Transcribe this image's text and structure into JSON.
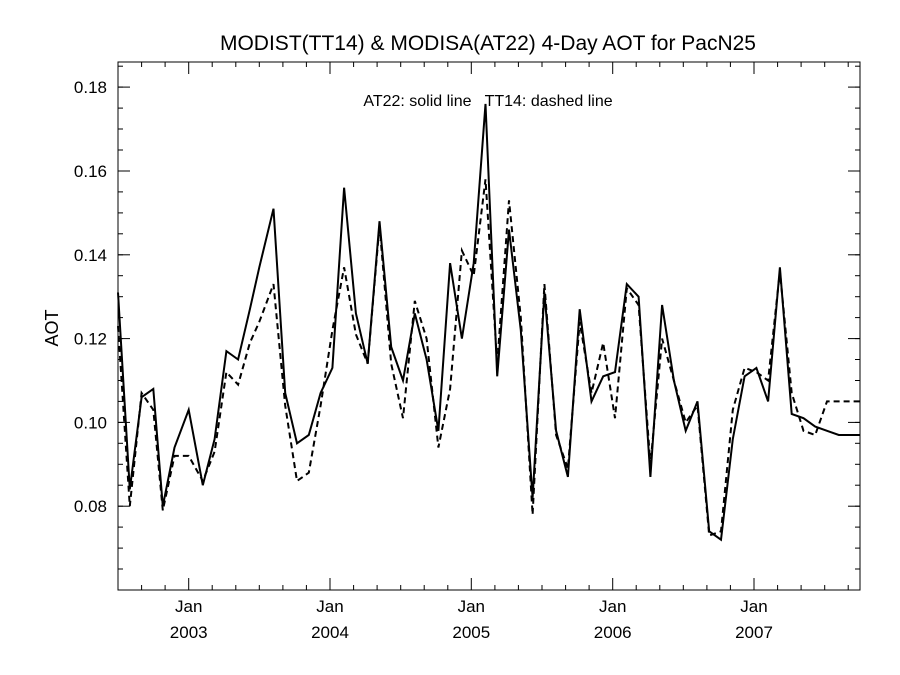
{
  "colors": {
    "background": "#ffffff",
    "ink": "#000000"
  },
  "chart_data": {
    "type": "line",
    "title": "MODIST(TT14) & MODISA(AT22) 4-Day AOT for PacN25",
    "annotation": "AT22: solid line   TT14: dashed line",
    "ylabel": "AOT",
    "xlabel": "",
    "x_unit": "month index (0 = Jan 2003)",
    "xlim": [
      -6.0,
      57.0
    ],
    "ylim": [
      0.06,
      0.186
    ],
    "y_ticks": [
      0.08,
      0.1,
      0.12,
      0.14,
      0.16,
      0.18
    ],
    "y_tick_labels": [
      "0.08",
      "0.10",
      "0.12",
      "0.14",
      "0.16",
      "0.18"
    ],
    "x_major_ticks": [
      {
        "x": 0,
        "month": "Jan",
        "year": "2003"
      },
      {
        "x": 12,
        "month": "Jan",
        "year": "2004"
      },
      {
        "x": 24,
        "month": "Jan",
        "year": "2005"
      },
      {
        "x": 36,
        "month": "Jan",
        "year": "2006"
      },
      {
        "x": 48,
        "month": "Jan",
        "year": "2007"
      }
    ],
    "grid": false,
    "series": [
      {
        "name": "AT22",
        "style": "solid",
        "x": [
          -6.0,
          -5.0,
          -4.0,
          -3.0,
          -2.2,
          -1.2,
          0.0,
          1.2,
          2.2,
          3.2,
          4.2,
          5.2,
          6.0,
          7.2,
          8.2,
          9.2,
          10.2,
          11.2,
          12.2,
          13.2,
          14.2,
          15.2,
          16.2,
          17.2,
          18.2,
          19.2,
          20.2,
          21.2,
          22.2,
          23.2,
          24.2,
          25.2,
          26.2,
          27.2,
          28.2,
          29.2,
          30.2,
          31.2,
          32.2,
          33.2,
          34.2,
          35.2,
          36.2,
          37.2,
          38.2,
          39.2,
          40.2,
          41.2,
          42.2,
          43.2,
          44.2,
          45.2,
          46.2,
          47.2,
          48.2,
          49.2,
          50.2,
          51.2,
          52.2,
          53.2,
          54.2,
          55.2,
          56.2,
          57.0
        ],
        "values": [
          0.131,
          0.084,
          0.106,
          0.108,
          0.08,
          0.094,
          0.103,
          0.085,
          0.096,
          0.117,
          0.115,
          0.127,
          0.137,
          0.151,
          0.107,
          0.095,
          0.097,
          0.107,
          0.113,
          0.156,
          0.126,
          0.114,
          0.148,
          0.118,
          0.11,
          0.126,
          0.115,
          0.098,
          0.138,
          0.12,
          0.138,
          0.176,
          0.111,
          0.146,
          0.122,
          0.082,
          0.131,
          0.098,
          0.087,
          0.127,
          0.105,
          0.111,
          0.112,
          0.133,
          0.13,
          0.087,
          0.128,
          0.11,
          0.098,
          0.105,
          0.074,
          0.072,
          0.096,
          0.111,
          0.113,
          0.105,
          0.137,
          0.102,
          0.101,
          0.099,
          0.098,
          0.097,
          0.097,
          0.097
        ]
      },
      {
        "name": "TT14",
        "style": "dashed",
        "x": [
          -6.0,
          -5.0,
          -4.0,
          -3.0,
          -2.2,
          -1.2,
          0.0,
          1.2,
          2.2,
          3.2,
          4.2,
          5.2,
          6.0,
          7.2,
          8.2,
          9.2,
          10.2,
          11.2,
          12.2,
          13.2,
          14.2,
          15.2,
          16.2,
          17.2,
          18.2,
          19.2,
          20.2,
          21.2,
          22.2,
          23.2,
          24.2,
          25.2,
          26.2,
          27.2,
          28.2,
          29.2,
          30.2,
          31.2,
          32.2,
          33.2,
          34.2,
          35.2,
          36.2,
          37.2,
          38.2,
          39.2,
          40.2,
          41.2,
          42.2,
          43.2,
          44.2,
          45.2,
          46.2,
          47.2,
          48.2,
          49.2,
          50.2,
          51.2,
          52.2,
          53.2,
          54.2,
          55.2,
          56.2,
          57.0
        ],
        "values": [
          0.123,
          0.08,
          0.107,
          0.103,
          0.079,
          0.092,
          0.092,
          0.086,
          0.093,
          0.112,
          0.109,
          0.119,
          0.124,
          0.133,
          0.104,
          0.086,
          0.088,
          0.104,
          0.122,
          0.137,
          0.121,
          0.114,
          0.147,
          0.114,
          0.101,
          0.129,
          0.12,
          0.094,
          0.108,
          0.141,
          0.135,
          0.158,
          0.114,
          0.153,
          0.125,
          0.078,
          0.133,
          0.097,
          0.089,
          0.124,
          0.107,
          0.119,
          0.101,
          0.132,
          0.128,
          0.09,
          0.12,
          0.11,
          0.1,
          0.104,
          0.073,
          0.074,
          0.103,
          0.113,
          0.112,
          0.11,
          0.136,
          0.107,
          0.098,
          0.097,
          0.105,
          0.105,
          0.105,
          0.105
        ]
      }
    ]
  }
}
